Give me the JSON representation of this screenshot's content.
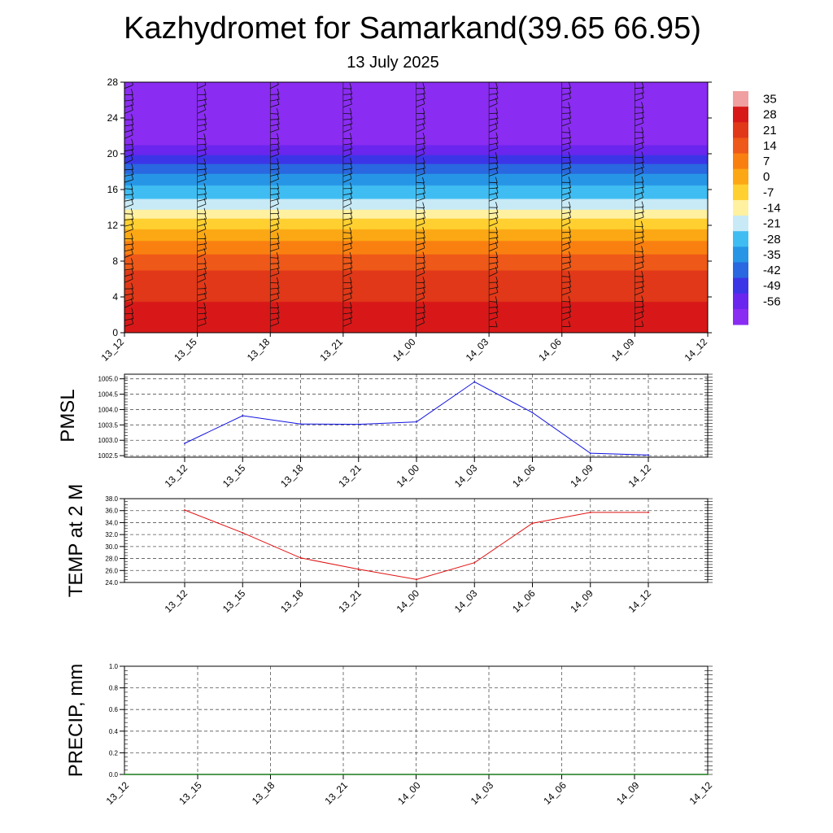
{
  "header": {
    "title": "Kazhydromet for Samarkand(39.65 66.95)",
    "subtitle": "13 July 2025"
  },
  "chart_data": [
    {
      "type": "heatmap",
      "title": "",
      "xlabel": "",
      "ylabel": "",
      "x_tick_labels": [
        "13_12",
        "13_15",
        "13_18",
        "13_21",
        "14_00",
        "14_03",
        "14_06",
        "14_09",
        "14_12"
      ],
      "y_ticks": [
        0,
        4,
        8,
        12,
        16,
        20,
        24,
        28
      ],
      "ylim": [
        0,
        28
      ],
      "colorbar": {
        "labels": [
          35,
          28,
          21,
          14,
          7,
          0,
          -7,
          -14,
          -21,
          -28,
          -35,
          -42,
          -49,
          -56
        ],
        "colors": [
          "#f0a0a0",
          "#d81818",
          "#e03818",
          "#ee5818",
          "#f98010",
          "#fba814",
          "#ffd030",
          "#fff1a0",
          "#c7eaf6",
          "#3fbdf2",
          "#2795e6",
          "#2968e0",
          "#3c35e8",
          "#6a26ee",
          "#8a2cf2"
        ]
      },
      "temperature_profile": [
        {
          "level": 0,
          "value": 33
        },
        {
          "level": 2,
          "value": 31
        },
        {
          "level": 4,
          "value": 27
        },
        {
          "level": 6,
          "value": 24
        },
        {
          "level": 8,
          "value": 18
        },
        {
          "level": 10,
          "value": 8
        },
        {
          "level": 12,
          "value": -2
        },
        {
          "level": 13.2,
          "value": -10
        },
        {
          "level": 14,
          "value": -16
        },
        {
          "level": 16,
          "value": -26
        },
        {
          "level": 18,
          "value": -36
        },
        {
          "level": 20,
          "value": -50
        },
        {
          "level": 21,
          "value": -56
        },
        {
          "level": 22.5,
          "value": -56
        },
        {
          "level": 28,
          "value": -60
        }
      ],
      "wind_barbs": "present",
      "grid": false
    },
    {
      "type": "line",
      "title": "",
      "ylabel": "PMSL",
      "x": [
        "13_12",
        "13_15",
        "13_18",
        "13_21",
        "14_00",
        "14_03",
        "14_06",
        "14_09",
        "14_12"
      ],
      "y_ticks": [
        "1002.5",
        "1003.0",
        "1003.5",
        "1004.0",
        "1004.5",
        "1005.0"
      ],
      "ylim": [
        1002.45,
        1005.15
      ],
      "series": [
        {
          "values": [
            1002.9,
            1003.8,
            1003.53,
            1003.52,
            1003.6,
            1004.9,
            1003.9,
            1002.58,
            1002.52
          ],
          "color": "#1010e0"
        }
      ],
      "grid": true
    },
    {
      "type": "line",
      "title": "",
      "ylabel": "TEMP at 2 M",
      "x": [
        "13_12",
        "13_15",
        "13_18",
        "13_21",
        "14_00",
        "14_03",
        "14_06",
        "14_09",
        "14_12"
      ],
      "y_ticks": [
        "24.0",
        "26.0",
        "28.0",
        "30.0",
        "32.0",
        "34.0",
        "36.0",
        "38.0"
      ],
      "ylim": [
        24,
        38
      ],
      "series": [
        {
          "values": [
            36.1,
            32.3,
            28.1,
            26.2,
            24.5,
            27.3,
            33.9,
            35.7,
            35.7
          ],
          "color": "#e01010"
        }
      ],
      "grid": true
    },
    {
      "type": "line",
      "title": "",
      "ylabel": "PRECIP, mm",
      "x": [
        "13_12",
        "13_15",
        "13_18",
        "13_21",
        "14_00",
        "14_03",
        "14_06",
        "14_09",
        "14_12"
      ],
      "y_ticks": [
        "0.0",
        "0.2",
        "0.4",
        "0.6",
        "0.8",
        "1.0"
      ],
      "ylim": [
        0,
        1
      ],
      "series": [
        {
          "values": [
            0,
            0,
            0,
            0,
            0,
            0,
            0,
            0,
            0
          ],
          "color": "#1a7a1a"
        }
      ],
      "grid": true
    }
  ]
}
